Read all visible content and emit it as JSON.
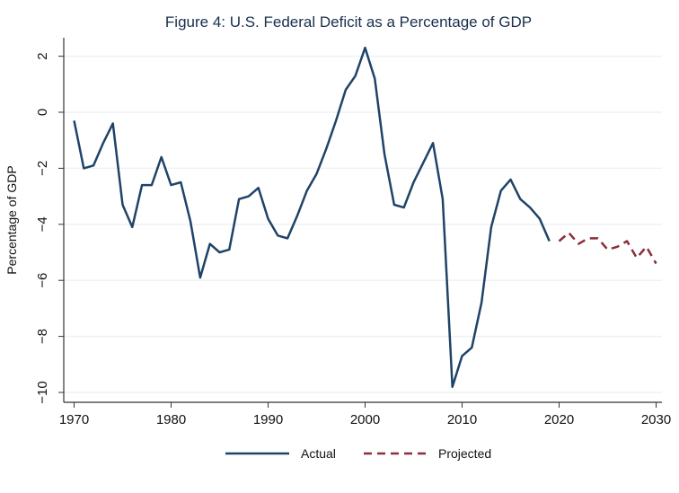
{
  "chart_data": {
    "type": "line",
    "title": "Figure 4: U.S. Federal Deficit as a Percentage of GDP",
    "xlabel": "",
    "ylabel": "Percentage of GDP",
    "xlim": [
      1969,
      2031
    ],
    "ylim": [
      -10.2,
      2.7
    ],
    "xticks": [
      1970,
      1980,
      1990,
      2000,
      2010,
      2020,
      2030
    ],
    "yticks": [
      2,
      0,
      -2,
      -4,
      -6,
      -8,
      -10
    ],
    "ytick_labels": [
      "2",
      "0",
      "−2",
      "−4",
      "−6",
      "−8",
      "−10"
    ],
    "grid": true,
    "legend_position": "bottom",
    "series": [
      {
        "name": "Actual",
        "color": "#1f4368",
        "style": "solid",
        "x": [
          1970,
          1971,
          1972,
          1973,
          1974,
          1975,
          1976,
          1977,
          1978,
          1979,
          1980,
          1981,
          1982,
          1983,
          1984,
          1985,
          1986,
          1987,
          1988,
          1989,
          1990,
          1991,
          1992,
          1993,
          1994,
          1995,
          1996,
          1997,
          1998,
          1999,
          2000,
          2001,
          2002,
          2003,
          2004,
          2005,
          2006,
          2007,
          2008,
          2009,
          2010,
          2011,
          2012,
          2013,
          2014,
          2015,
          2016,
          2017,
          2018,
          2019
        ],
        "values": [
          -0.3,
          -2.0,
          -1.9,
          -1.1,
          -0.4,
          -3.3,
          -4.1,
          -2.6,
          -2.6,
          -1.6,
          -2.6,
          -2.5,
          -3.9,
          -5.9,
          -4.7,
          -5.0,
          -4.9,
          -3.1,
          -3.0,
          -2.7,
          -3.8,
          -4.4,
          -4.5,
          -3.7,
          -2.8,
          -2.2,
          -1.3,
          -0.3,
          0.8,
          1.3,
          2.3,
          1.2,
          -1.5,
          -3.3,
          -3.4,
          -2.5,
          -1.8,
          -1.1,
          -3.1,
          -9.8,
          -8.7,
          -8.4,
          -6.8,
          -4.1,
          -2.8,
          -2.4,
          -3.1,
          -3.4,
          -3.8,
          -4.6
        ]
      },
      {
        "name": "Projected",
        "color": "#8b2e3a",
        "style": "dashed",
        "x": [
          2020,
          2021,
          2022,
          2023,
          2024,
          2025,
          2026,
          2027,
          2028,
          2029,
          2030
        ],
        "values": [
          -4.6,
          -4.3,
          -4.7,
          -4.5,
          -4.5,
          -4.9,
          -4.8,
          -4.6,
          -5.2,
          -4.8,
          -5.4
        ]
      }
    ]
  }
}
